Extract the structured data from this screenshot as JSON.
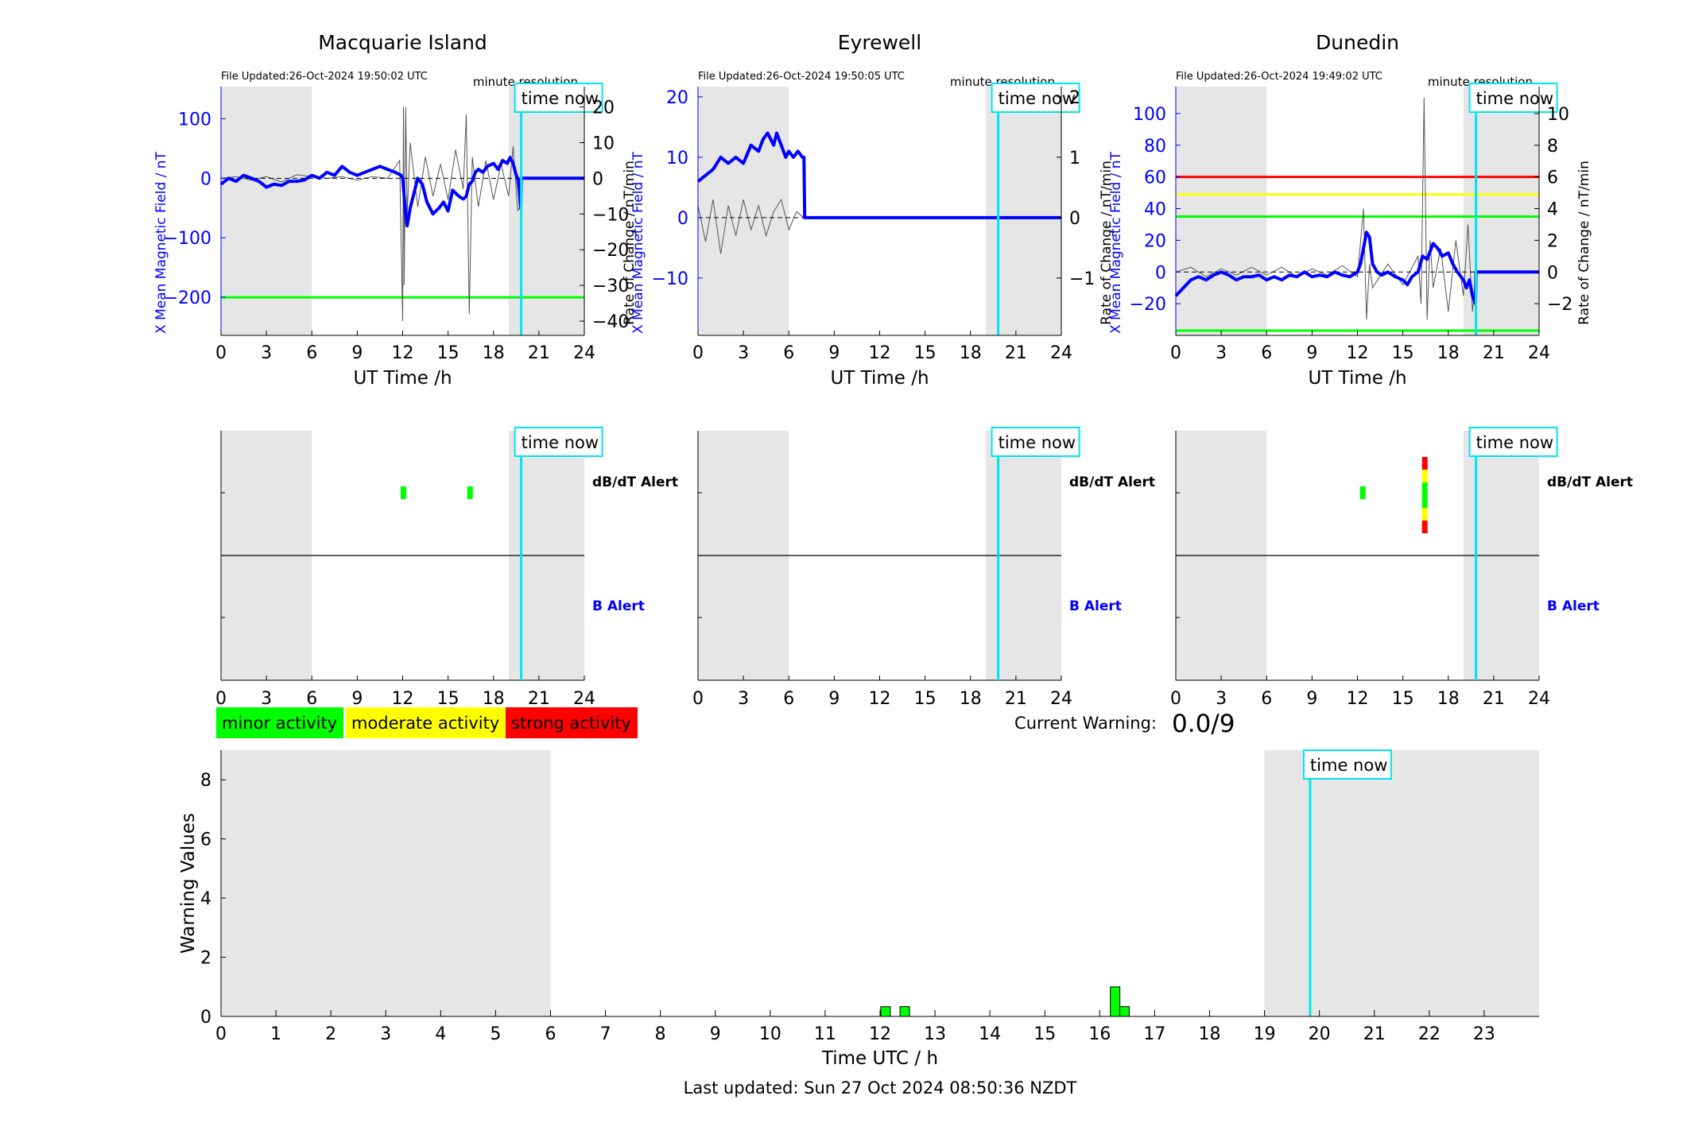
{
  "footer": {
    "last_updated": "Last updated: Sun 27 Oct 2024 08:50:36 NZDT"
  },
  "legend": {
    "minor": "minor activity",
    "moderate": "moderate activity",
    "strong": "strong activity"
  },
  "current_warning": {
    "label": "Current Warning:",
    "value": "0.0/9"
  },
  "colors": {
    "field": "#0000ff",
    "rate": "#000000",
    "time_now": "#00e5ee",
    "night_shade": "#e6e6e6",
    "minor": "#00ff00",
    "moderate": "#ffff00",
    "strong": "#ff0000"
  },
  "chart_data": [
    {
      "type": "line",
      "title": "Macquarie Island",
      "file_updated": "File Updated:26-Oct-2024 19:50:02 UTC",
      "resolution": "minute resolution",
      "time_now_label": "time now",
      "xlabel": "UT Time /h",
      "ylabel_left": "X Mean Magnetic Field / nT",
      "ylabel_right": "Rate of Change / nT/min",
      "xlim": [
        0,
        24
      ],
      "xticks": [
        0,
        3,
        6,
        9,
        12,
        15,
        18,
        21,
        24
      ],
      "ylim_left": [
        -264,
        154
      ],
      "yticks_left": [
        -200,
        -100,
        0,
        100
      ],
      "ylim_right": [
        -44,
        25.7
      ],
      "yticks_right": [
        -40,
        -30,
        -20,
        -10,
        0,
        10,
        20
      ],
      "time_now": 19.83,
      "shade": [
        [
          0,
          6
        ],
        [
          19,
          24
        ]
      ],
      "thresholds": [
        {
          "y": -200,
          "color": "#00ff00"
        }
      ],
      "field_series": {
        "name": "X Mean Magnetic Field",
        "x": [
          0,
          0.5,
          1,
          1.5,
          2,
          2.5,
          3,
          3.5,
          4,
          4.5,
          5,
          5.5,
          6,
          6.5,
          7,
          7.5,
          8,
          8.5,
          9,
          9.5,
          10,
          10.5,
          11,
          11,
          11.5,
          11.9,
          12,
          12.1,
          12.2,
          12.3,
          12.5,
          12.8,
          13,
          13.3,
          13.6,
          14,
          14.4,
          14.7,
          15,
          15.3,
          15.7,
          16,
          16.2,
          16.4,
          16.6,
          16.8,
          17,
          17.3,
          17.6,
          18,
          18.3,
          18.6,
          18.9,
          19.1,
          19.3,
          19.5,
          19.6,
          19.7,
          19.8,
          19.83,
          24
        ],
        "y": [
          -10,
          0,
          -5,
          5,
          0,
          -5,
          -15,
          -10,
          -12,
          -5,
          -5,
          -3,
          5,
          0,
          10,
          5,
          20,
          10,
          5,
          10,
          15,
          20,
          15,
          15,
          10,
          5,
          0,
          -30,
          -60,
          -80,
          -50,
          -20,
          0,
          -10,
          -40,
          -60,
          -50,
          -40,
          -55,
          -20,
          -30,
          -35,
          -30,
          -10,
          -5,
          10,
          15,
          10,
          20,
          25,
          15,
          30,
          25,
          35,
          25,
          5,
          0,
          -20,
          -50,
          0,
          0
        ]
      },
      "rate_series": {
        "name": "Rate of Change",
        "x": [
          0,
          1,
          2,
          3,
          4,
          5,
          6,
          7,
          8,
          9,
          10,
          11,
          11.8,
          12,
          12.05,
          12.1,
          12.2,
          12.3,
          12.5,
          13,
          13.5,
          14,
          14.5,
          15,
          15.5,
          16,
          16.2,
          16.4,
          16.6,
          17,
          17.5,
          18,
          18.5,
          19,
          19.3,
          19.6,
          19.8
        ],
        "y": [
          0,
          0.5,
          -0.5,
          0.5,
          -1,
          1,
          0.5,
          0,
          0.5,
          -0.5,
          0.5,
          0,
          5,
          -40,
          20,
          -30,
          20,
          -10,
          10,
          -8,
          6,
          -5,
          4,
          -6,
          8,
          -3,
          18,
          -38,
          6,
          -8,
          5,
          -6,
          4,
          -5,
          9,
          -9,
          -8
        ]
      },
      "alerts": {
        "dbdt_label": "dB/dT Alert",
        "b_label": "B Alert",
        "dbdt": [
          {
            "t": 12.05,
            "levels": [
              "minor"
            ]
          },
          {
            "t": 16.45,
            "levels": [
              "minor"
            ]
          }
        ],
        "b": []
      }
    },
    {
      "type": "line",
      "title": "Eyrewell",
      "file_updated": "File Updated:26-Oct-2024 19:50:05 UTC",
      "resolution": "minute resolution",
      "time_now_label": "time now",
      "xlabel": "UT Time /h",
      "ylabel_left": "X Mean Magnetic Field / nT",
      "ylabel_right": "Rate of Change / nT/min",
      "xlim": [
        0,
        24
      ],
      "xticks": [
        0,
        3,
        6,
        9,
        12,
        15,
        18,
        21,
        24
      ],
      "ylim_left": [
        -19.5,
        21.7
      ],
      "yticks_left": [
        -10,
        0,
        10,
        20
      ],
      "ylim_right": [
        -1.95,
        2.17
      ],
      "yticks_right": [
        -1,
        0,
        1,
        2
      ],
      "time_now": 19.83,
      "shade": [
        [
          0,
          6
        ],
        [
          19,
          24
        ]
      ],
      "thresholds": [],
      "field_series": {
        "name": "X Mean Magnetic Field",
        "x": [
          0,
          0.5,
          1,
          1.5,
          2,
          2.5,
          3,
          3.5,
          4,
          4.3,
          4.6,
          5,
          5.2,
          5.5,
          5.8,
          6,
          6.3,
          6.6,
          6.9,
          7,
          7.05,
          24
        ],
        "y": [
          6,
          7,
          8,
          10,
          9,
          10,
          9,
          12,
          11,
          13,
          14,
          12,
          14,
          12,
          10,
          11,
          10,
          11,
          10,
          10,
          0,
          0
        ]
      },
      "rate_series": {
        "name": "Rate of Change",
        "x": [
          0,
          0.5,
          1,
          1.5,
          2,
          2.5,
          3,
          3.5,
          4,
          4.5,
          5,
          5.5,
          6,
          6.5,
          7
        ],
        "y": [
          0.2,
          -0.4,
          0.3,
          -0.6,
          0.2,
          -0.3,
          0.3,
          -0.2,
          0.2,
          -0.3,
          0.1,
          0.3,
          -0.2,
          0.1,
          0
        ]
      },
      "alerts": {
        "dbdt_label": "dB/dT Alert",
        "b_label": "B Alert",
        "dbdt": [],
        "b": []
      }
    },
    {
      "type": "line",
      "title": "Dunedin",
      "file_updated": "File Updated:26-Oct-2024 19:49:02 UTC",
      "resolution": "minute resolution",
      "time_now_label": "time now",
      "xlabel": "UT Time /h",
      "ylabel_left": "X Mean Magnetic Field / nT",
      "ylabel_right": "Rate of Change / nT/min",
      "xlim": [
        0,
        24
      ],
      "xticks": [
        0,
        3,
        6,
        9,
        12,
        15,
        18,
        21,
        24
      ],
      "ylim_left": [
        -40,
        117
      ],
      "yticks_left": [
        -20,
        0,
        20,
        40,
        60,
        80,
        100
      ],
      "ylim_right": [
        -4,
        11.7
      ],
      "yticks_right": [
        -2,
        0,
        2,
        4,
        6,
        8,
        10
      ],
      "time_now": 19.83,
      "shade": [
        [
          0,
          6
        ],
        [
          19,
          24
        ]
      ],
      "thresholds": [
        {
          "y": 60,
          "color": "#ff0000"
        },
        {
          "y": 49,
          "color": "#ffff00"
        },
        {
          "y": 35,
          "color": "#00ff00"
        },
        {
          "y": -37,
          "color": "#00ff00"
        }
      ],
      "field_series": {
        "name": "X Mean Magnetic Field",
        "x": [
          0,
          0.5,
          1,
          1.5,
          2,
          2.5,
          3,
          3.5,
          4,
          4.5,
          5,
          5.5,
          6,
          6.5,
          7,
          7.5,
          8,
          8.5,
          9,
          9.5,
          10,
          10.5,
          11,
          11.5,
          12,
          12.2,
          12.4,
          12.6,
          12.8,
          13,
          13.3,
          13.6,
          14,
          14.5,
          15,
          15.3,
          15.6,
          16,
          16.3,
          16.6,
          17,
          17.3,
          17.6,
          18,
          18.3,
          18.6,
          19,
          19.2,
          19.4,
          19.6,
          19.8,
          19.83,
          24
        ],
        "y": [
          -15,
          -10,
          -5,
          -3,
          -5,
          -2,
          0,
          -2,
          -5,
          -3,
          -3,
          -2,
          -5,
          -3,
          -5,
          -2,
          -3,
          0,
          -3,
          -2,
          -3,
          0,
          -2,
          -3,
          0,
          5,
          15,
          25,
          22,
          5,
          0,
          -2,
          0,
          -3,
          -5,
          -8,
          -3,
          0,
          10,
          8,
          18,
          15,
          10,
          12,
          5,
          0,
          -5,
          -10,
          -5,
          -15,
          -20,
          0,
          0
        ]
      },
      "rate_series": {
        "name": "Rate of Change",
        "x": [
          0,
          1,
          2,
          3,
          4,
          5,
          6,
          7,
          8,
          9,
          10,
          11,
          12,
          12.4,
          12.6,
          12.8,
          13,
          14,
          15,
          16,
          16.2,
          16.4,
          16.6,
          16.8,
          17,
          17.5,
          18,
          18.5,
          19,
          19.3,
          19.6,
          19.8
        ],
        "y": [
          0,
          0.3,
          -0.3,
          0.2,
          -0.2,
          0.3,
          -0.2,
          0.3,
          -0.3,
          0.2,
          -0.2,
          0.4,
          -0.3,
          4,
          -3,
          0.5,
          -1,
          0.5,
          -0.8,
          1,
          -2,
          11,
          -3,
          2,
          -1,
          1.5,
          -2.5,
          2,
          -1.5,
          3,
          -2.5,
          -0.5
        ]
      },
      "alerts": {
        "dbdt_label": "dB/dT Alert",
        "b_label": "B Alert",
        "dbdt": [
          {
            "t": 12.35,
            "levels": [
              "minor"
            ]
          },
          {
            "t": 16.45,
            "levels": [
              "strong",
              "moderate",
              "minor",
              "minor",
              "moderate",
              "strong"
            ]
          }
        ],
        "b": []
      }
    },
    {
      "type": "bar",
      "title": "",
      "time_now_label": "time now",
      "xlabel": "Time UTC / h",
      "ylabel": "Warning Values",
      "xlim": [
        0,
        24
      ],
      "xticks": [
        0,
        1,
        2,
        3,
        4,
        5,
        6,
        7,
        8,
        9,
        10,
        11,
        12,
        13,
        14,
        15,
        16,
        17,
        18,
        19,
        20,
        21,
        22,
        23
      ],
      "ylim": [
        0,
        9
      ],
      "yticks": [
        0,
        2,
        4,
        6,
        8
      ],
      "time_now": 19.83,
      "shade": [
        [
          0,
          6
        ],
        [
          19,
          24
        ]
      ],
      "bars": [
        {
          "x": 12.1,
          "value": 0.33,
          "color": "#00ff00"
        },
        {
          "x": 12.45,
          "value": 0.33,
          "color": "#00ff00"
        },
        {
          "x": 16.28,
          "value": 1,
          "color": "#00ff00"
        },
        {
          "x": 16.45,
          "value": 0.33,
          "color": "#00ff00"
        }
      ]
    }
  ]
}
